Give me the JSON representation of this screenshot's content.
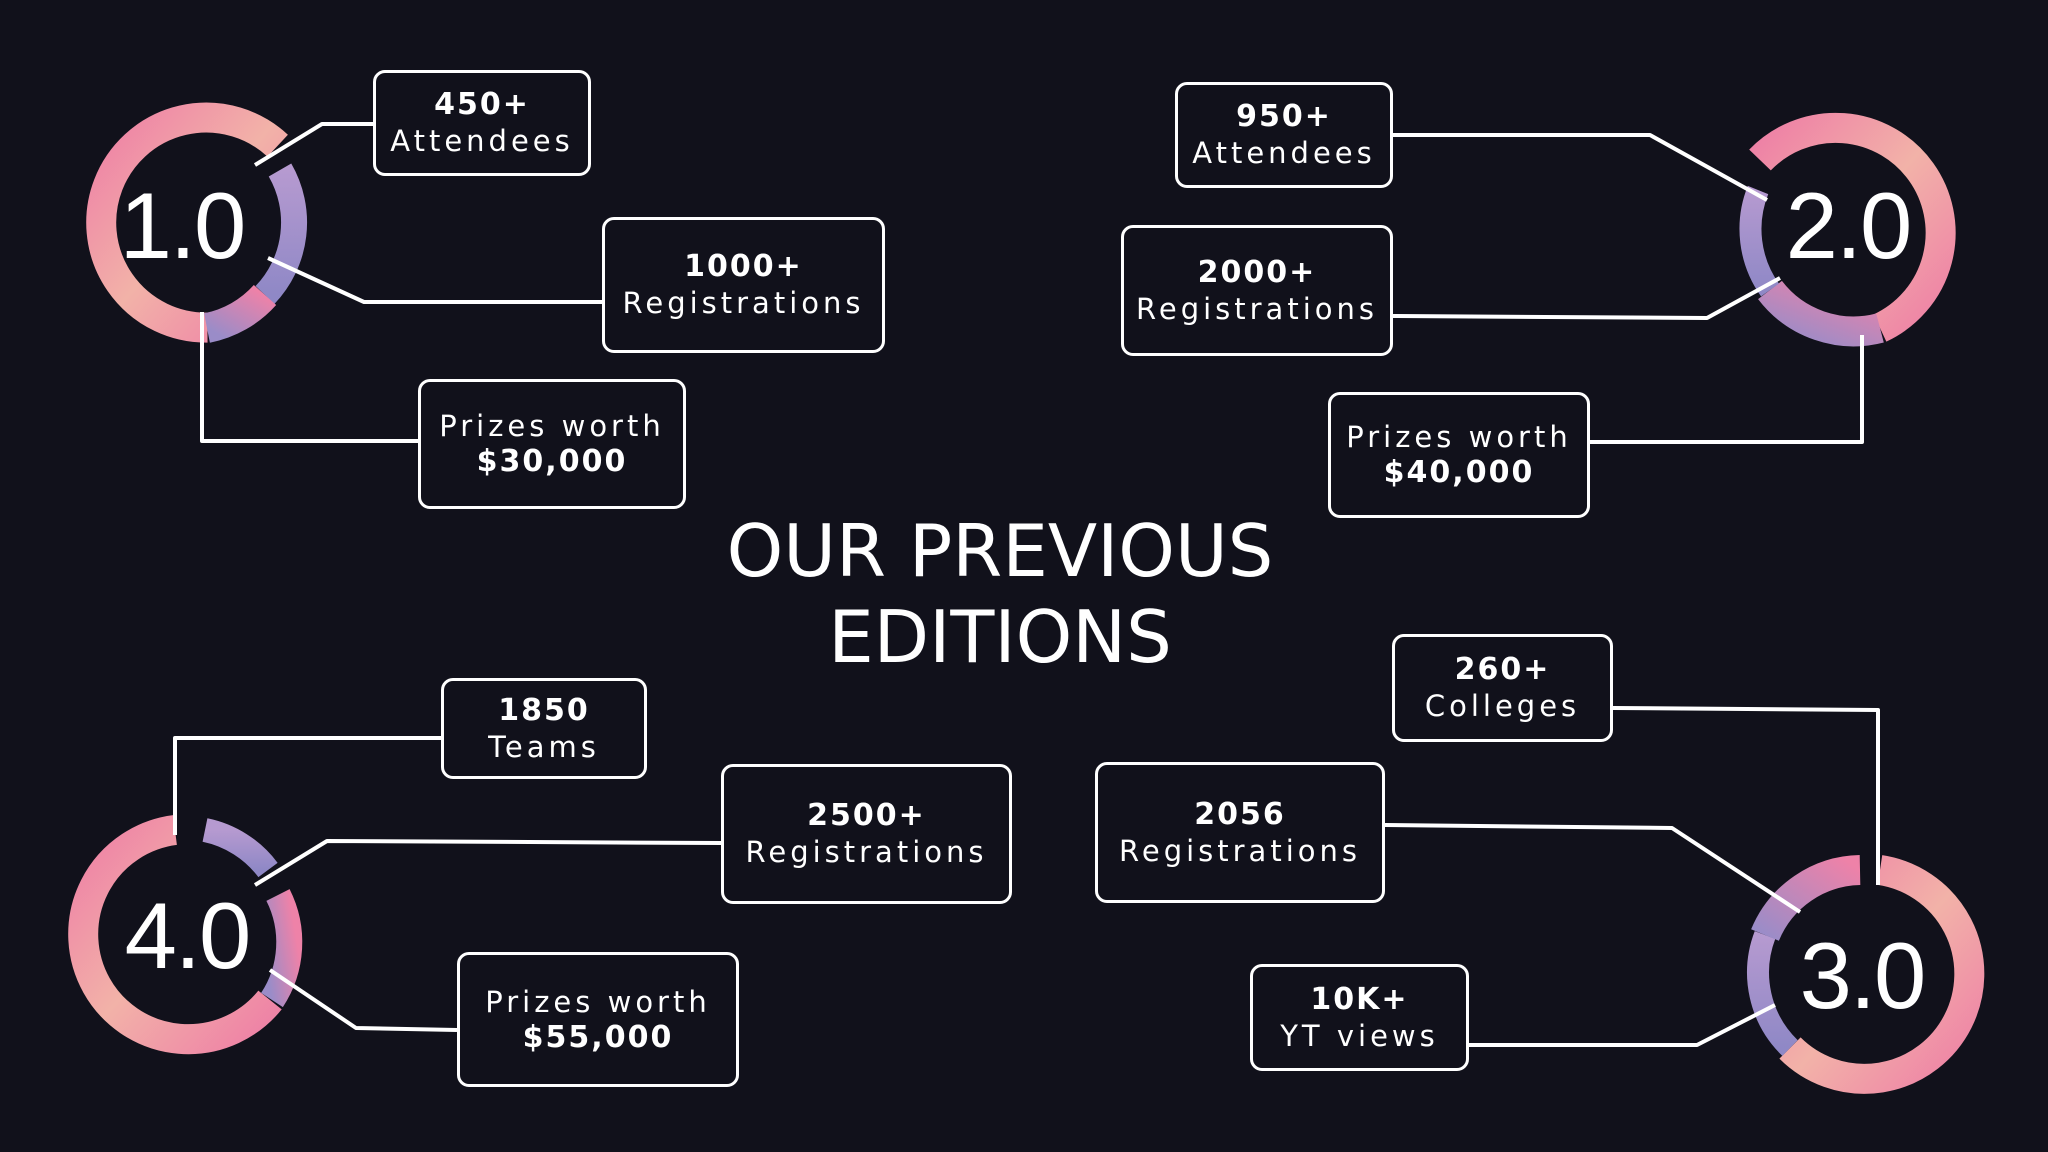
{
  "title": {
    "line1": "OUR PREVIOUS",
    "line2": "EDITIONS"
  },
  "colors": {
    "background": "#11111b",
    "ring_pink": "#ee82a8",
    "ring_peach": "#f0b4a8",
    "ring_lavender": "#9a8cc8",
    "line": "#ffffff"
  },
  "editions": [
    {
      "label": "1.0",
      "stats": [
        {
          "top": "450+",
          "bottom": "Attendees"
        },
        {
          "top": "1000+",
          "bottom": "Registrations"
        },
        {
          "top": "Prizes worth",
          "bottom": "$30,000"
        }
      ]
    },
    {
      "label": "2.0",
      "stats": [
        {
          "top": "950+",
          "bottom": "Attendees"
        },
        {
          "top": "2000+",
          "bottom": "Registrations"
        },
        {
          "top": "Prizes worth",
          "bottom": "$40,000"
        }
      ]
    },
    {
      "label": "3.0",
      "stats": [
        {
          "top": "260+",
          "bottom": "Colleges"
        },
        {
          "top": "2056",
          "bottom": "Registrations"
        },
        {
          "top": "10K+",
          "bottom": "YT views"
        }
      ]
    },
    {
      "label": "4.0",
      "stats": [
        {
          "top": "1850",
          "bottom": "Teams"
        },
        {
          "top": "2500+",
          "bottom": "Registrations"
        },
        {
          "top": "Prizes worth",
          "bottom": "$55,000"
        }
      ]
    }
  ]
}
